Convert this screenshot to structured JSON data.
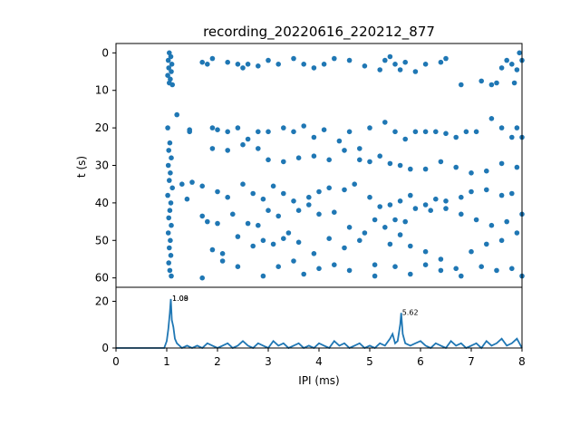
{
  "chart_data": [
    {
      "type": "scatter",
      "title": "recording_20220616_220212_877",
      "xlabel": "",
      "ylabel": "t (s)",
      "xlim": [
        0,
        8
      ],
      "ylim": [
        62.5,
        -2.5
      ],
      "y_inverted": true,
      "grid": false,
      "x_ticks": [],
      "y_ticks": [
        "0",
        "10",
        "20",
        "30",
        "40",
        "50",
        "60"
      ],
      "color": "#1f77b4",
      "points": [
        [
          1.05,
          0.0
        ],
        [
          1.08,
          1.0
        ],
        [
          1.03,
          2.0
        ],
        [
          1.1,
          3.0
        ],
        [
          1.04,
          4.0
        ],
        [
          1.09,
          5.0
        ],
        [
          1.02,
          6.0
        ],
        [
          1.07,
          7.0
        ],
        [
          1.05,
          8.0
        ],
        [
          1.11,
          8.5
        ],
        [
          1.02,
          20.0
        ],
        [
          1.06,
          24.0
        ],
        [
          1.04,
          26.0
        ],
        [
          1.09,
          28.0
        ],
        [
          1.03,
          30.0
        ],
        [
          1.07,
          32.0
        ],
        [
          1.05,
          34.0
        ],
        [
          1.11,
          36.0
        ],
        [
          1.02,
          38.0
        ],
        [
          1.08,
          40.0
        ],
        [
          1.06,
          42.0
        ],
        [
          1.04,
          44.0
        ],
        [
          1.09,
          46.0
        ],
        [
          1.03,
          48.0
        ],
        [
          1.07,
          50.0
        ],
        [
          1.05,
          52.0
        ],
        [
          1.08,
          54.0
        ],
        [
          1.04,
          56.0
        ],
        [
          1.06,
          58.0
        ],
        [
          1.09,
          59.5
        ],
        [
          1.2,
          16.5
        ],
        [
          1.3,
          35.0
        ],
        [
          1.4,
          39.0
        ],
        [
          1.45,
          20.5
        ],
        [
          1.45,
          21.0
        ],
        [
          1.7,
          2.5
        ],
        [
          1.8,
          3.0
        ],
        [
          1.9,
          1.5
        ],
        [
          2.2,
          2.5
        ],
        [
          2.4,
          3.0
        ],
        [
          2.5,
          4.0
        ],
        [
          2.6,
          3.0
        ],
        [
          2.8,
          3.5
        ],
        [
          3.0,
          2.0
        ],
        [
          3.2,
          3.0
        ],
        [
          3.5,
          1.5
        ],
        [
          3.7,
          3.0
        ],
        [
          3.9,
          4.0
        ],
        [
          4.1,
          3.0
        ],
        [
          4.3,
          1.5
        ],
        [
          4.6,
          2.0
        ],
        [
          4.9,
          3.5
        ],
        [
          5.2,
          4.5
        ],
        [
          5.3,
          2.0
        ],
        [
          5.4,
          1.0
        ],
        [
          5.5,
          3.0
        ],
        [
          5.6,
          4.5
        ],
        [
          5.7,
          2.5
        ],
        [
          5.9,
          5.0
        ],
        [
          6.1,
          3.0
        ],
        [
          6.4,
          2.5
        ],
        [
          6.5,
          1.5
        ],
        [
          6.8,
          8.5
        ],
        [
          7.2,
          7.5
        ],
        [
          7.4,
          8.5
        ],
        [
          7.5,
          8.0
        ],
        [
          7.6,
          4.0
        ],
        [
          7.7,
          2.0
        ],
        [
          7.8,
          3.0
        ],
        [
          7.9,
          4.5
        ],
        [
          8.0,
          2.0
        ],
        [
          7.85,
          8.0
        ],
        [
          7.95,
          0.0
        ],
        [
          1.9,
          20.0
        ],
        [
          2.0,
          20.5
        ],
        [
          2.2,
          21.0
        ],
        [
          2.4,
          20.0
        ],
        [
          2.6,
          23.0
        ],
        [
          2.8,
          21.0
        ],
        [
          3.0,
          21.0
        ],
        [
          3.3,
          20.0
        ],
        [
          3.5,
          21.0
        ],
        [
          3.7,
          19.5
        ],
        [
          3.9,
          22.5
        ],
        [
          4.1,
          20.5
        ],
        [
          4.4,
          23.5
        ],
        [
          4.6,
          21.0
        ],
        [
          4.8,
          25.5
        ],
        [
          5.0,
          20.0
        ],
        [
          5.3,
          18.5
        ],
        [
          5.5,
          21.0
        ],
        [
          5.7,
          23.0
        ],
        [
          5.9,
          21.0
        ],
        [
          6.1,
          21.0
        ],
        [
          6.3,
          21.0
        ],
        [
          6.5,
          21.5
        ],
        [
          6.7,
          22.5
        ],
        [
          6.9,
          21.0
        ],
        [
          7.1,
          21.0
        ],
        [
          7.4,
          17.5
        ],
        [
          7.6,
          20.0
        ],
        [
          7.8,
          22.5
        ],
        [
          7.9,
          20.0
        ],
        [
          8.0,
          22.5
        ],
        [
          1.9,
          25.5
        ],
        [
          2.2,
          26.0
        ],
        [
          2.5,
          24.5
        ],
        [
          2.8,
          25.5
        ],
        [
          3.0,
          28.5
        ],
        [
          3.3,
          29.0
        ],
        [
          3.6,
          28.0
        ],
        [
          3.9,
          27.5
        ],
        [
          4.2,
          28.5
        ],
        [
          4.5,
          26.0
        ],
        [
          4.8,
          28.5
        ],
        [
          5.0,
          29.0
        ],
        [
          5.2,
          27.5
        ],
        [
          5.4,
          29.5
        ],
        [
          5.6,
          30.0
        ],
        [
          5.8,
          31.0
        ],
        [
          6.1,
          31.0
        ],
        [
          6.4,
          29.0
        ],
        [
          6.7,
          30.5
        ],
        [
          7.0,
          32.0
        ],
        [
          7.3,
          31.5
        ],
        [
          7.6,
          29.5
        ],
        [
          7.9,
          30.5
        ],
        [
          1.5,
          34.5
        ],
        [
          1.7,
          35.5
        ],
        [
          2.0,
          37.0
        ],
        [
          2.2,
          38.5
        ],
        [
          2.5,
          35.0
        ],
        [
          2.7,
          37.5
        ],
        [
          2.9,
          39.0
        ],
        [
          3.1,
          35.5
        ],
        [
          3.3,
          37.5
        ],
        [
          3.5,
          39.5
        ],
        [
          3.8,
          38.5
        ],
        [
          4.0,
          37.0
        ],
        [
          4.2,
          36.0
        ],
        [
          4.5,
          36.5
        ],
        [
          4.7,
          35.0
        ],
        [
          5.0,
          38.5
        ],
        [
          5.2,
          41.0
        ],
        [
          5.4,
          40.5
        ],
        [
          5.6,
          39.5
        ],
        [
          5.8,
          38.0
        ],
        [
          6.1,
          40.5
        ],
        [
          6.3,
          39.0
        ],
        [
          6.5,
          39.5
        ],
        [
          6.8,
          38.5
        ],
        [
          7.0,
          37.0
        ],
        [
          7.3,
          36.5
        ],
        [
          7.6,
          38.0
        ],
        [
          7.8,
          37.5
        ],
        [
          1.7,
          43.5
        ],
        [
          1.8,
          45.0
        ],
        [
          2.0,
          45.5
        ],
        [
          2.3,
          43.0
        ],
        [
          2.6,
          45.5
        ],
        [
          2.8,
          46.0
        ],
        [
          3.0,
          42.0
        ],
        [
          3.2,
          43.5
        ],
        [
          3.4,
          48.0
        ],
        [
          3.6,
          42.0
        ],
        [
          3.8,
          40.5
        ],
        [
          4.0,
          43.0
        ],
        [
          4.3,
          42.5
        ],
        [
          4.6,
          46.5
        ],
        [
          4.9,
          48.0
        ],
        [
          5.1,
          44.5
        ],
        [
          5.3,
          46.5
        ],
        [
          5.5,
          44.5
        ],
        [
          5.7,
          45.0
        ],
        [
          5.9,
          41.5
        ],
        [
          6.2,
          42.0
        ],
        [
          6.5,
          41.5
        ],
        [
          6.8,
          43.0
        ],
        [
          7.1,
          44.5
        ],
        [
          7.4,
          46.0
        ],
        [
          7.7,
          45.0
        ],
        [
          8.0,
          43.0
        ],
        [
          1.9,
          52.5
        ],
        [
          2.1,
          53.5
        ],
        [
          2.4,
          49.0
        ],
        [
          2.7,
          51.5
        ],
        [
          2.9,
          50.0
        ],
        [
          3.1,
          51.0
        ],
        [
          3.3,
          49.5
        ],
        [
          3.6,
          50.5
        ],
        [
          3.9,
          53.5
        ],
        [
          4.2,
          49.5
        ],
        [
          4.5,
          52.0
        ],
        [
          4.8,
          50.0
        ],
        [
          5.1,
          56.5
        ],
        [
          5.4,
          51.0
        ],
        [
          5.6,
          48.5
        ],
        [
          5.8,
          51.5
        ],
        [
          6.1,
          53.0
        ],
        [
          6.4,
          55.0
        ],
        [
          6.7,
          57.5
        ],
        [
          7.0,
          53.0
        ],
        [
          7.3,
          51.0
        ],
        [
          7.6,
          50.0
        ],
        [
          7.9,
          48.0
        ],
        [
          1.7,
          60.0
        ],
        [
          2.1,
          55.5
        ],
        [
          2.4,
          57.0
        ],
        [
          2.9,
          59.5
        ],
        [
          3.2,
          57.0
        ],
        [
          3.5,
          55.5
        ],
        [
          3.7,
          59.0
        ],
        [
          4.0,
          57.5
        ],
        [
          4.3,
          56.5
        ],
        [
          4.6,
          58.0
        ],
        [
          5.1,
          59.5
        ],
        [
          5.5,
          57.0
        ],
        [
          5.8,
          59.0
        ],
        [
          6.1,
          56.5
        ],
        [
          6.4,
          58.0
        ],
        [
          6.8,
          59.5
        ],
        [
          7.2,
          57.0
        ],
        [
          7.5,
          58.0
        ],
        [
          7.8,
          57.5
        ],
        [
          8.0,
          59.5
        ]
      ]
    },
    {
      "type": "line",
      "title": "",
      "xlabel": "IPI (ms)",
      "ylabel": "",
      "xlim": [
        0,
        8
      ],
      "ylim": [
        0,
        26
      ],
      "grid": false,
      "x_ticks": [
        "0",
        "1",
        "2",
        "3",
        "4",
        "5",
        "6",
        "7",
        "8"
      ],
      "y_ticks": [
        "0",
        "20"
      ],
      "color": "#1f77b4",
      "annotations": [
        {
          "x": 1.09,
          "y": 21,
          "text": "1.09"
        },
        {
          "x": 1.09,
          "y": 21,
          "text": "1.08"
        },
        {
          "x": 5.62,
          "y": 15,
          "text": "5.62"
        }
      ],
      "x": [
        0.0,
        0.95,
        1.0,
        1.03,
        1.06,
        1.08,
        1.1,
        1.13,
        1.16,
        1.2,
        1.25,
        1.3,
        1.4,
        1.5,
        1.6,
        1.7,
        1.8,
        1.9,
        2.0,
        2.1,
        2.2,
        2.3,
        2.4,
        2.5,
        2.6,
        2.7,
        2.8,
        2.9,
        3.0,
        3.1,
        3.2,
        3.3,
        3.4,
        3.5,
        3.6,
        3.7,
        3.8,
        3.9,
        4.0,
        4.1,
        4.2,
        4.3,
        4.4,
        4.5,
        4.6,
        4.7,
        4.8,
        4.9,
        5.0,
        5.1,
        5.2,
        5.3,
        5.4,
        5.45,
        5.5,
        5.55,
        5.6,
        5.62,
        5.65,
        5.7,
        5.8,
        5.9,
        6.0,
        6.1,
        6.2,
        6.3,
        6.4,
        6.5,
        6.6,
        6.7,
        6.8,
        6.9,
        7.0,
        7.1,
        7.2,
        7.3,
        7.4,
        7.5,
        7.6,
        7.7,
        7.8,
        7.9,
        8.0
      ],
      "y": [
        0,
        0,
        3,
        8,
        15,
        21,
        12,
        9,
        4,
        2,
        1,
        0,
        1,
        0,
        1,
        0,
        2,
        1,
        0,
        1,
        2,
        0,
        1,
        3,
        1,
        0,
        2,
        1,
        0,
        3,
        1,
        2,
        0,
        1,
        2,
        0,
        1,
        0,
        2,
        1,
        0,
        3,
        1,
        2,
        0,
        1,
        2,
        0,
        1,
        0,
        2,
        1,
        4,
        6,
        2,
        3,
        10,
        15,
        6,
        2,
        1,
        2,
        3,
        1,
        0,
        2,
        1,
        0,
        3,
        1,
        2,
        0,
        1,
        2,
        0,
        3,
        1,
        2,
        4,
        1,
        2,
        4,
        0
      ]
    }
  ]
}
